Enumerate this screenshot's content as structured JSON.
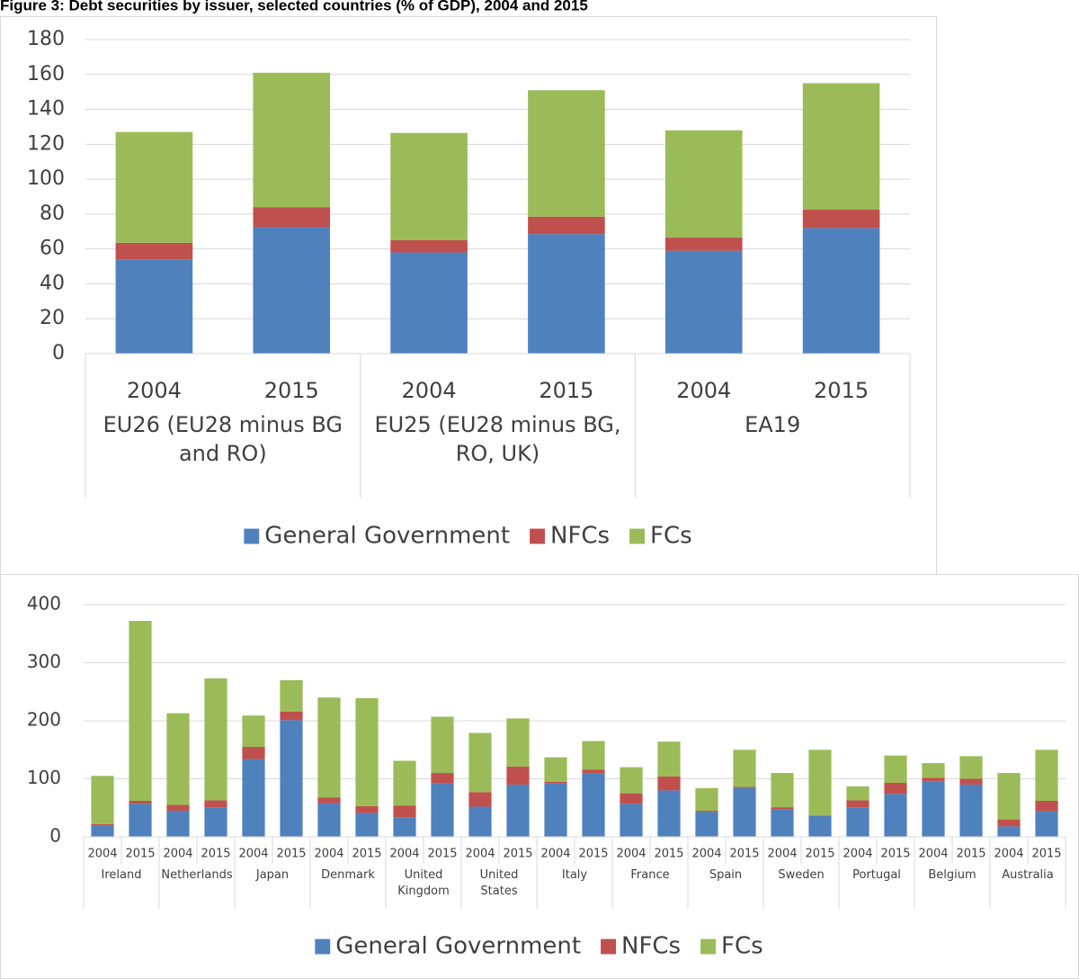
{
  "title": "Figure 3: Debt securities by issuer, selected countries (% of GDP), 2004 and 2015",
  "chart_data": [
    {
      "type": "bar",
      "stacked": true,
      "grid": true,
      "categories": [
        "2004",
        "2015",
        "2004",
        "2015",
        "2004",
        "2015"
      ],
      "groups": [
        "EU26 (EU28 minus BG and RO)",
        "EU25 (EU28 minus BG, RO, UK)",
        "EA19"
      ],
      "series": [
        {
          "name": "General Government",
          "color": "#4f81bd",
          "values": [
            54,
            72.5,
            58,
            68.5,
            59,
            72
          ]
        },
        {
          "name": "NFCs",
          "color": "#c0504d",
          "values": [
            9.5,
            11.5,
            7,
            10,
            7.5,
            10.5
          ]
        },
        {
          "name": "FCs",
          "color": "#9bbb59",
          "values": [
            63.5,
            77,
            61.5,
            72.5,
            61.5,
            72.5
          ]
        }
      ],
      "ylim": [
        0,
        180
      ],
      "yticks": [
        0,
        20,
        40,
        60,
        80,
        100,
        120,
        140,
        160,
        180
      ],
      "legend": "bottom"
    },
    {
      "type": "bar",
      "stacked": true,
      "grid": true,
      "categories": [
        "2004",
        "2015",
        "2004",
        "2015",
        "2004",
        "2015",
        "2004",
        "2015",
        "2004",
        "2015",
        "2004",
        "2015",
        "2004",
        "2015",
        "2004",
        "2015",
        "2004",
        "2015",
        "2004",
        "2015",
        "2004",
        "2015",
        "2004",
        "2015",
        "2004",
        "2015"
      ],
      "groups": [
        "Ireland",
        "Netherlands",
        "Japan",
        "Denmark",
        "United Kingdom",
        "United States",
        "Italy",
        "France",
        "Spain",
        "Sweden",
        "Portugal",
        "Belgium",
        "Australia"
      ],
      "series": [
        {
          "name": "General Government",
          "color": "#4f81bd",
          "values": [
            20,
            57,
            45,
            51,
            134,
            201,
            58,
            41,
            33,
            92,
            52,
            90,
            92,
            109,
            57,
            80,
            43,
            84,
            47,
            36,
            51,
            74,
            95,
            90,
            18,
            44
          ]
        },
        {
          "name": "NFCs",
          "color": "#c0504d",
          "values": [
            2,
            5,
            10,
            12,
            21,
            15,
            10,
            12,
            21,
            18,
            25,
            31,
            3,
            7,
            18,
            24,
            2,
            2,
            4,
            1,
            12,
            19,
            7,
            10,
            12,
            18
          ]
        },
        {
          "name": "FCs",
          "color": "#9bbb59",
          "values": [
            83,
            310,
            158,
            210,
            54,
            54,
            172,
            186,
            77,
            97,
            102,
            83,
            42,
            49,
            45,
            60,
            39,
            64,
            59,
            113,
            24,
            47,
            25,
            39,
            80,
            88
          ]
        }
      ],
      "ylim": [
        0,
        400
      ],
      "yticks": [
        0,
        100,
        200,
        300,
        400
      ],
      "legend": "bottom"
    }
  ]
}
